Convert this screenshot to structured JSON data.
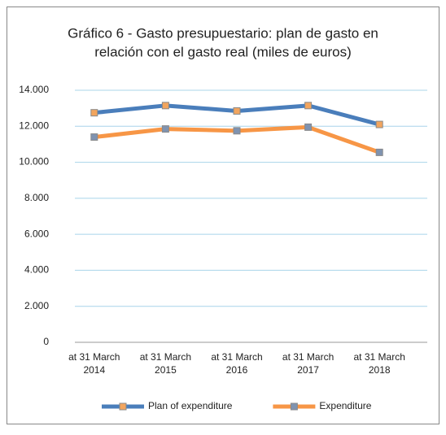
{
  "chart_data": {
    "type": "line",
    "title": [
      "Gráfico 6 - Gasto presupuestario: plan de gasto en",
      "relación con el gasto real (miles de euros)"
    ],
    "categories": [
      "at 31 March 2014",
      "at 31 March 2015",
      "at 31 March 2016",
      "at 31 March 2017",
      "at 31 March 2018"
    ],
    "series": [
      {
        "name": "Plan of expenditure",
        "color": "#4a7ebb",
        "marker_color": "#f2a55e",
        "values": [
          12750,
          13150,
          12850,
          13150,
          12100
        ]
      },
      {
        "name": "Expenditure",
        "color": "#f79646",
        "marker_color": "#7f93b0",
        "values": [
          11400,
          11850,
          11750,
          11950,
          10550
        ]
      }
    ],
    "ylim": [
      0,
      14000
    ],
    "yticks": [
      0,
      {
        "value": 2000,
        "label": "2.000"
      },
      {
        "value": 4000,
        "label": "4.000"
      },
      {
        "value": 6000,
        "label": "6.000"
      },
      {
        "value": 8000,
        "label": "8.000"
      },
      {
        "value": 10000,
        "label": "10.000"
      },
      {
        "value": 12000,
        "label": "12.000"
      },
      {
        "value": 14000,
        "label": "14.000"
      }
    ],
    "grid": true,
    "legend": "bottom"
  }
}
